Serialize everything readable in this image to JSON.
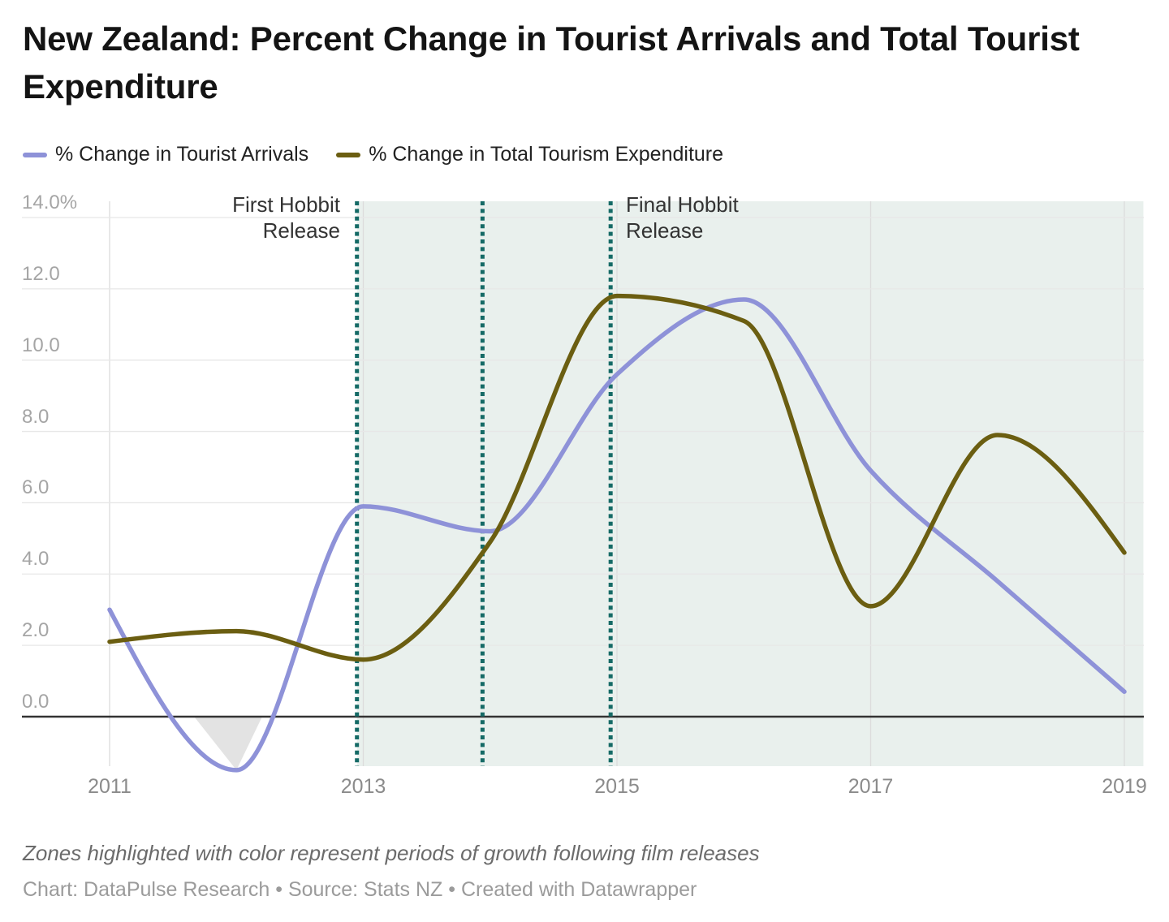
{
  "header": {
    "title": "New Zealand: Percent Change in Tourist Arrivals and Total Tourist Expenditure"
  },
  "legend": {
    "items": [
      {
        "label": "% Change in Tourist Arrivals",
        "color": "#8e92d8"
      },
      {
        "label": "% Change in Total Tourism Expenditure",
        "color": "#6b5e11"
      }
    ]
  },
  "annotations": {
    "first": {
      "line1": "First Hobbit",
      "line2": "Release"
    },
    "final": {
      "line1": "Final Hobbit",
      "line2": "Release"
    }
  },
  "footer": {
    "note": "Zones highlighted with color represent periods of growth following film releases",
    "credit": "Chart: DataPulse Research • Source: Stats NZ • Created with Datawrapper"
  },
  "chart_data": {
    "type": "line",
    "x": [
      2011,
      2012,
      2013,
      2014,
      2015,
      2016,
      2017,
      2018,
      2019
    ],
    "series": [
      {
        "name": "% Change in Tourist Arrivals",
        "color": "#8e92d8",
        "values": [
          3.0,
          -1.5,
          5.9,
          5.2,
          9.6,
          11.7,
          6.9,
          3.8,
          0.7
        ]
      },
      {
        "name": "% Change in Total Tourism Expenditure",
        "color": "#6b5e11",
        "values": [
          2.1,
          2.4,
          1.6,
          4.9,
          11.8,
          11.1,
          3.1,
          7.9,
          4.6
        ]
      }
    ],
    "title": "New Zealand: Percent Change in Tourist Arrivals and Total Tourist Expenditure",
    "xlabel": "",
    "ylabel": "",
    "ylim": [
      -1.4,
      14.45
    ],
    "y_ticks": [
      0,
      2,
      4,
      6,
      8,
      10,
      12,
      14
    ],
    "y_tick_labels": [
      "0.0",
      "2.0",
      "4.0",
      "6.0",
      "8.0",
      "10.0",
      "12.0",
      "14.0%"
    ],
    "x_ticks": [
      2011,
      2013,
      2015,
      2017,
      2019
    ],
    "x_tick_labels": [
      "2011",
      "2013",
      "2015",
      "2017",
      "2019"
    ],
    "grid": "on",
    "legend_position": "top",
    "curve": "monotone",
    "zero_line_color": "#333333",
    "grid_h_color": "#e7e7e7",
    "grid_v_color": "#dcdcdc",
    "negative_area_color": "#e3e3e3",
    "highlight_zone": {
      "from": 2012.95,
      "to": 2019.15,
      "color": "#e9f0ed"
    },
    "release_markers": {
      "x": [
        2012.95,
        2013.94,
        2014.95
      ],
      "color": "#156a66"
    }
  }
}
